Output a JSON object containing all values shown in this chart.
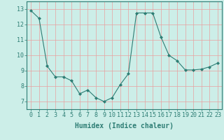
{
  "x": [
    0,
    1,
    2,
    3,
    4,
    5,
    6,
    7,
    8,
    9,
    10,
    11,
    12,
    13,
    14,
    15,
    16,
    17,
    18,
    19,
    20,
    21,
    22,
    23
  ],
  "y": [
    12.9,
    12.4,
    9.3,
    8.6,
    8.6,
    8.35,
    7.5,
    7.75,
    7.25,
    7.0,
    7.25,
    8.1,
    8.8,
    12.75,
    12.75,
    12.75,
    11.2,
    10.0,
    9.65,
    9.05,
    9.05,
    9.1,
    9.25,
    9.5
  ],
  "line_color": "#2d7d74",
  "marker": "D",
  "marker_size": 2,
  "bg_color": "#cceee8",
  "grid_color": "#e8a0a0",
  "xlabel": "Humidex (Indice chaleur)",
  "xlabel_fontsize": 7,
  "tick_fontsize": 6,
  "ylim": [
    6.5,
    13.5
  ],
  "xlim": [
    -0.5,
    23.5
  ],
  "yticks": [
    7,
    8,
    9,
    10,
    11,
    12,
    13
  ],
  "xticks": [
    0,
    1,
    2,
    3,
    4,
    5,
    6,
    7,
    8,
    9,
    10,
    11,
    12,
    13,
    14,
    15,
    16,
    17,
    18,
    19,
    20,
    21,
    22,
    23
  ]
}
